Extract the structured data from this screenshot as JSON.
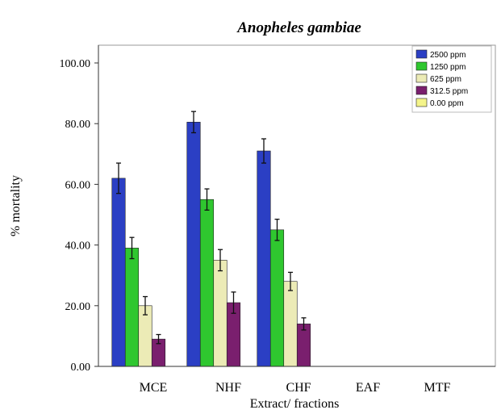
{
  "chart_data": {
    "type": "bar",
    "title": "Anopheles gambiae",
    "xlabel": "Extract/ fractions",
    "ylabel": "% mortality",
    "ylim": [
      0,
      100
    ],
    "yticks": [
      "0.00",
      "20.00",
      "40.00",
      "60.00",
      "80.00",
      "100.00"
    ],
    "categories": [
      "MCE",
      "NHF",
      "CHF",
      "EAF",
      "MTF"
    ],
    "series": [
      {
        "name": "2500 ppm",
        "color": "#2b3fc4",
        "values": [
          62,
          80.5,
          71,
          0,
          0
        ],
        "errors": [
          5,
          3.5,
          4,
          0,
          0
        ]
      },
      {
        "name": "1250 ppm",
        "color": "#2fc72f",
        "values": [
          39,
          55,
          45,
          0,
          0
        ],
        "errors": [
          3.5,
          3.5,
          3.5,
          0,
          0
        ]
      },
      {
        "name": "625 ppm",
        "color": "#ecebb6",
        "values": [
          20,
          35,
          28,
          0,
          0
        ],
        "errors": [
          3,
          3.5,
          3,
          0,
          0
        ]
      },
      {
        "name": "312.5 ppm",
        "color": "#7a1f6e",
        "values": [
          9,
          21,
          14,
          0,
          0
        ],
        "errors": [
          1.5,
          3.5,
          2,
          0,
          0
        ]
      },
      {
        "name": "0.00 ppm",
        "color": "#f4f48a",
        "values": [
          0,
          0,
          0,
          0,
          0
        ],
        "errors": [
          0,
          0,
          0,
          0,
          0
        ]
      }
    ],
    "legend_position": "top-right",
    "grid": false
  }
}
